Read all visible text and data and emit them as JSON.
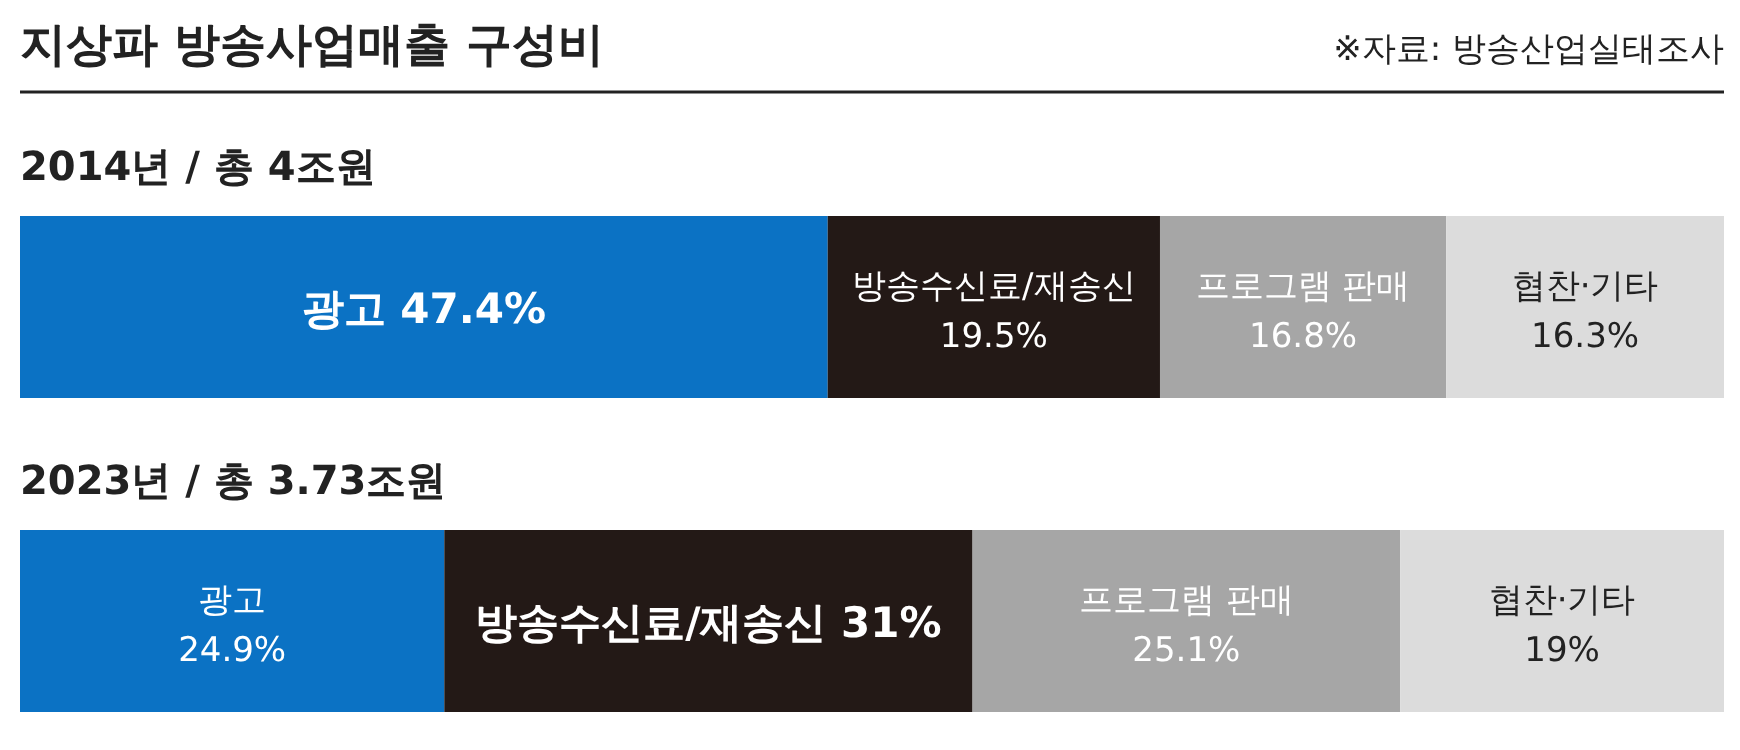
{
  "chart_data": {
    "type": "bar",
    "orientation": "horizontal",
    "stacked": true,
    "title": "지상파 방송사업매출 구성비",
    "annotations": [
      "※자료: 방송산업실태조사"
    ],
    "categories": [
      "2014년 / 총 4조원",
      "2023년 / 총 3.73조원"
    ],
    "xlim": [
      0,
      100
    ],
    "series": [
      {
        "name": "광고",
        "color": "#0b72c4",
        "values": [
          47.4,
          24.9
        ],
        "value_labels": [
          "47.4%",
          "24.9%"
        ]
      },
      {
        "name": "방송수신료/재송신",
        "color": "#231916",
        "values": [
          19.5,
          31
        ],
        "value_labels": [
          "19.5%",
          "31%"
        ]
      },
      {
        "name": "프로그램 판매",
        "color": "#a6a6a6",
        "values": [
          16.8,
          25.1
        ],
        "value_labels": [
          "16.8%",
          "25.1%"
        ]
      },
      {
        "name": "협찬·기타",
        "color": "#dcdcdc",
        "values": [
          16.3,
          19
        ],
        "value_labels": [
          "16.3%",
          "19%"
        ]
      }
    ]
  }
}
